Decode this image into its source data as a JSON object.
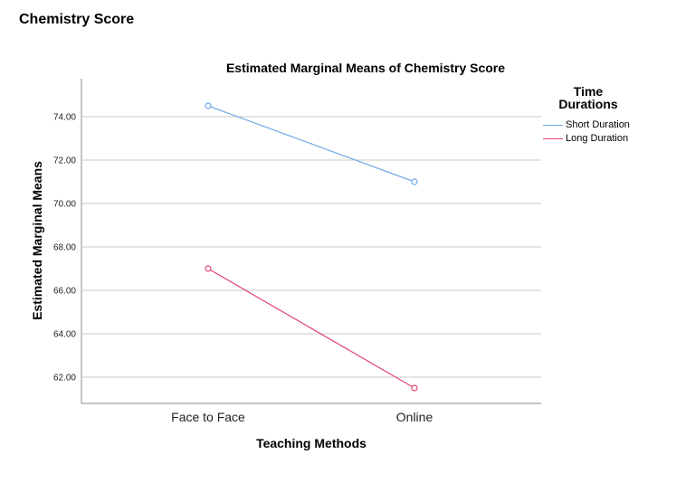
{
  "page": {
    "heading": "Chemistry Score"
  },
  "chart_data": {
    "type": "line",
    "title": "Estimated Marginal Means of Chemistry Score",
    "xlabel": "Teaching Methods",
    "ylabel": "Estimated Marginal Means",
    "categories": [
      "Face to Face",
      "Online"
    ],
    "series": [
      {
        "name": "Short Duration",
        "color": "#6fa8e8",
        "values": [
          74.5,
          71.0
        ]
      },
      {
        "name": "Long Duration",
        "color": "#e0436e",
        "values": [
          67.0,
          61.5
        ]
      }
    ],
    "yticks": [
      "62.00",
      "64.00",
      "66.00",
      "68.00",
      "70.00",
      "72.00",
      "74.00"
    ],
    "ylim": [
      60.9,
      75.9
    ],
    "grid": true,
    "legend": {
      "title_line1": "Time",
      "title_line2": "Durations",
      "position": "right"
    }
  }
}
